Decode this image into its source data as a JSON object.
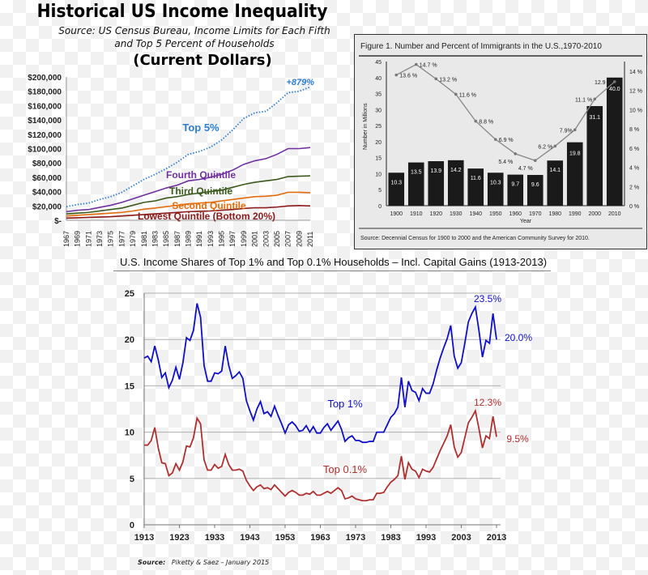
{
  "chart_data": [
    {
      "type": "line",
      "title": "Historical US Income Inequality",
      "subtitle": "Source:  US Census Bureau, Income Limits for Each Fifth and Top 5 Percent of Households",
      "subtitle2": "(Current Dollars)",
      "xlabel": "",
      "ylabel": "",
      "ylim": [
        0,
        200000
      ],
      "yticks": [
        "$-",
        "$20,000",
        "$40,000",
        "$60,000",
        "$80,000",
        "$100,000",
        "$120,000",
        "$140,000",
        "$160,000",
        "$180,000",
        "$200,000"
      ],
      "x": [
        1967,
        1969,
        1971,
        1973,
        1975,
        1977,
        1979,
        1981,
        1983,
        1985,
        1987,
        1989,
        1991,
        1993,
        1995,
        1997,
        1999,
        2001,
        2003,
        2005,
        2007,
        2009,
        2011
      ],
      "grid": false,
      "annotation": "+879%",
      "series": [
        {
          "name": "Top 5%",
          "color": "#2f7fd0",
          "style": "dotted",
          "values": [
            19000,
            22000,
            24000,
            29000,
            33000,
            39000,
            48000,
            57000,
            64000,
            72000,
            81000,
            92000,
            96000,
            102000,
            112000,
            126000,
            142000,
            150000,
            152000,
            164000,
            178000,
            180000,
            186000
          ]
        },
        {
          "name": "Fourth Quintile",
          "color": "#7030a0",
          "values": [
            12000,
            14000,
            15000,
            18000,
            21000,
            25000,
            30000,
            35000,
            40000,
            45000,
            49000,
            55000,
            57000,
            60000,
            64000,
            70000,
            78000,
            83000,
            86000,
            92000,
            100000,
            100000,
            101500
          ]
        },
        {
          "name": "Third Quintile",
          "color": "#3d5a1e",
          "values": [
            9000,
            10000,
            11000,
            13000,
            15000,
            17000,
            21000,
            25000,
            27000,
            31000,
            33000,
            36000,
            38000,
            40000,
            42000,
            46000,
            50000,
            53000,
            55000,
            57000,
            61000,
            61500,
            62000
          ]
        },
        {
          "name": "Second Quintile",
          "color": "#e46c0a",
          "values": [
            6000,
            7000,
            8000,
            9000,
            10000,
            11000,
            13000,
            15500,
            17000,
            19000,
            21000,
            23000,
            24000,
            25000,
            27000,
            29000,
            31000,
            33000,
            33500,
            35000,
            39000,
            39000,
            38500
          ]
        },
        {
          "name": "Lowest Quintile (Bottom 20%)",
          "color": "#8b1a1a",
          "values": [
            3000,
            3500,
            4000,
            4500,
            5000,
            6000,
            7000,
            8000,
            9000,
            10000,
            11000,
            12000,
            12500,
            13000,
            14000,
            15000,
            16500,
            17500,
            17500,
            18500,
            20000,
            20500,
            20000
          ]
        }
      ]
    },
    {
      "type": "bar",
      "title": "Figure 1. Number and Percent of Immigrants in the U.S.,1970-2010",
      "xlabel": "Year",
      "ylabel": "Number in Millions",
      "categories": [
        "1900",
        "1910",
        "1920",
        "1930",
        "1940",
        "1950",
        "1960",
        "1970",
        "1980",
        "1990",
        "2000",
        "2010"
      ],
      "ylim": [
        0,
        45
      ],
      "yticks": [
        "0",
        "5",
        "10",
        "15",
        "20",
        "25",
        "30",
        "35",
        "40",
        "45"
      ],
      "y2lim": [
        0,
        15
      ],
      "y2ticks": [
        "0 %",
        "2 %",
        "4 %",
        "6 %",
        "8 %",
        "10 %",
        "12 %",
        "14 %"
      ],
      "series": [
        {
          "type": "bar",
          "color": "#1a1a1a",
          "values": [
            10.3,
            13.5,
            13.9,
            14.2,
            11.6,
            10.3,
            9.7,
            9.6,
            14.1,
            19.8,
            31.1,
            40.0
          ],
          "labels": [
            "10.3",
            "13.5",
            "13.9",
            "14.2",
            "11.6",
            "10.3",
            "9.7",
            "9.6",
            "14.1",
            "19.8",
            "31.1",
            "40.0"
          ]
        },
        {
          "type": "line",
          "axis": "right",
          "color": "#888888",
          "values": [
            13.6,
            14.7,
            13.2,
            11.6,
            8.8,
            6.9,
            5.4,
            4.7,
            6.2,
            7.9,
            11.1,
            12.9
          ],
          "labels": [
            "13.6 %",
            "14.7 %",
            "13.2 %",
            "11.6 %",
            "8.8 %",
            "6.9 %",
            "5.4 %",
            "4.7 %",
            "6.2 %",
            "7.9%",
            "11.1 %",
            "12.9 %"
          ]
        }
      ],
      "source": "Source: Decennial Census for 1900 to 2000 and the American Community Survey for 2010."
    },
    {
      "type": "line",
      "title": "U.S. Income Shares of Top 1% and Top 0.1% Households – Incl. Capital Gains (1913-2013)",
      "xlabel": "",
      "ylabel": "",
      "xlim": [
        1913,
        2013
      ],
      "xticks": [
        "1913",
        "1923",
        "1933",
        "1943",
        "1953",
        "1963",
        "1973",
        "1983",
        "1993",
        "2003",
        "2013"
      ],
      "ylim": [
        0,
        25
      ],
      "yticks": [
        "0",
        "5",
        "10",
        "15",
        "20",
        "25"
      ],
      "grid": true,
      "source_label": "Source:",
      "source_text": "Piketty & Saez – January 2015",
      "series": [
        {
          "name": "Top 1%",
          "color": "#1010c8",
          "peak_label": "23.5%",
          "end_label": "20.0%",
          "values": [
            18.0,
            18.2,
            17.6,
            19.3,
            17.8,
            15.9,
            16.4,
            14.8,
            15.6,
            17.0,
            15.7,
            17.5,
            20.2,
            19.9,
            21.0,
            23.9,
            22.4,
            17.2,
            15.5,
            15.5,
            16.4,
            16.3,
            16.6,
            19.3,
            17.2,
            15.8,
            16.1,
            16.5,
            15.8,
            13.4,
            12.3,
            11.3,
            12.5,
            13.3,
            12.0,
            12.2,
            11.7,
            12.8,
            11.8,
            10.9,
            9.9,
            10.8,
            11.1,
            10.7,
            10.1,
            10.2,
            10.7,
            10.0,
            10.6,
            9.9,
            9.9,
            10.5,
            10.9,
            10.2,
            10.7,
            11.2,
            10.3,
            9.0,
            9.4,
            9.6,
            9.1,
            9.1,
            8.9,
            8.9,
            9.0,
            9.0,
            10.0,
            10.0,
            10.0,
            10.8,
            11.6,
            12.0,
            12.7,
            15.9,
            12.7,
            15.5,
            14.5,
            14.3,
            13.4,
            14.7,
            14.2,
            14.2,
            15.2,
            16.7,
            18.0,
            19.1,
            20.1,
            21.5,
            18.2,
            16.9,
            17.5,
            19.6,
            21.9,
            22.8,
            23.5,
            21.0,
            18.1,
            19.9,
            19.6,
            22.8,
            20.0
          ]
        },
        {
          "name": "Top 0.1%",
          "color": "#b03030",
          "peak_label": "12.3%",
          "end_label": "9.5%",
          "values": [
            8.6,
            8.6,
            9.1,
            10.5,
            8.3,
            6.7,
            6.6,
            5.3,
            5.6,
            6.6,
            5.9,
            6.8,
            8.5,
            8.4,
            9.4,
            11.5,
            10.9,
            7.0,
            5.9,
            5.9,
            6.5,
            6.1,
            6.3,
            7.6,
            6.5,
            5.9,
            5.9,
            6.0,
            5.8,
            4.8,
            4.2,
            3.7,
            4.1,
            4.3,
            3.9,
            4.0,
            3.8,
            4.3,
            3.9,
            3.5,
            3.1,
            3.5,
            3.7,
            3.5,
            3.2,
            3.2,
            3.4,
            3.3,
            3.6,
            3.2,
            3.2,
            3.4,
            3.6,
            3.4,
            3.7,
            4.0,
            3.7,
            2.8,
            2.9,
            3.1,
            2.8,
            2.7,
            2.6,
            2.6,
            2.7,
            2.7,
            3.4,
            3.4,
            3.5,
            4.1,
            4.6,
            4.9,
            5.3,
            7.4,
            4.9,
            6.7,
            6.0,
            5.8,
            5.1,
            6.0,
            5.8,
            5.7,
            6.2,
            7.1,
            8.0,
            8.8,
            9.6,
            10.8,
            8.4,
            7.3,
            7.8,
            9.4,
            11.0,
            11.6,
            12.3,
            10.4,
            8.3,
            9.6,
            9.3,
            11.7,
            9.5
          ]
        }
      ]
    }
  ]
}
